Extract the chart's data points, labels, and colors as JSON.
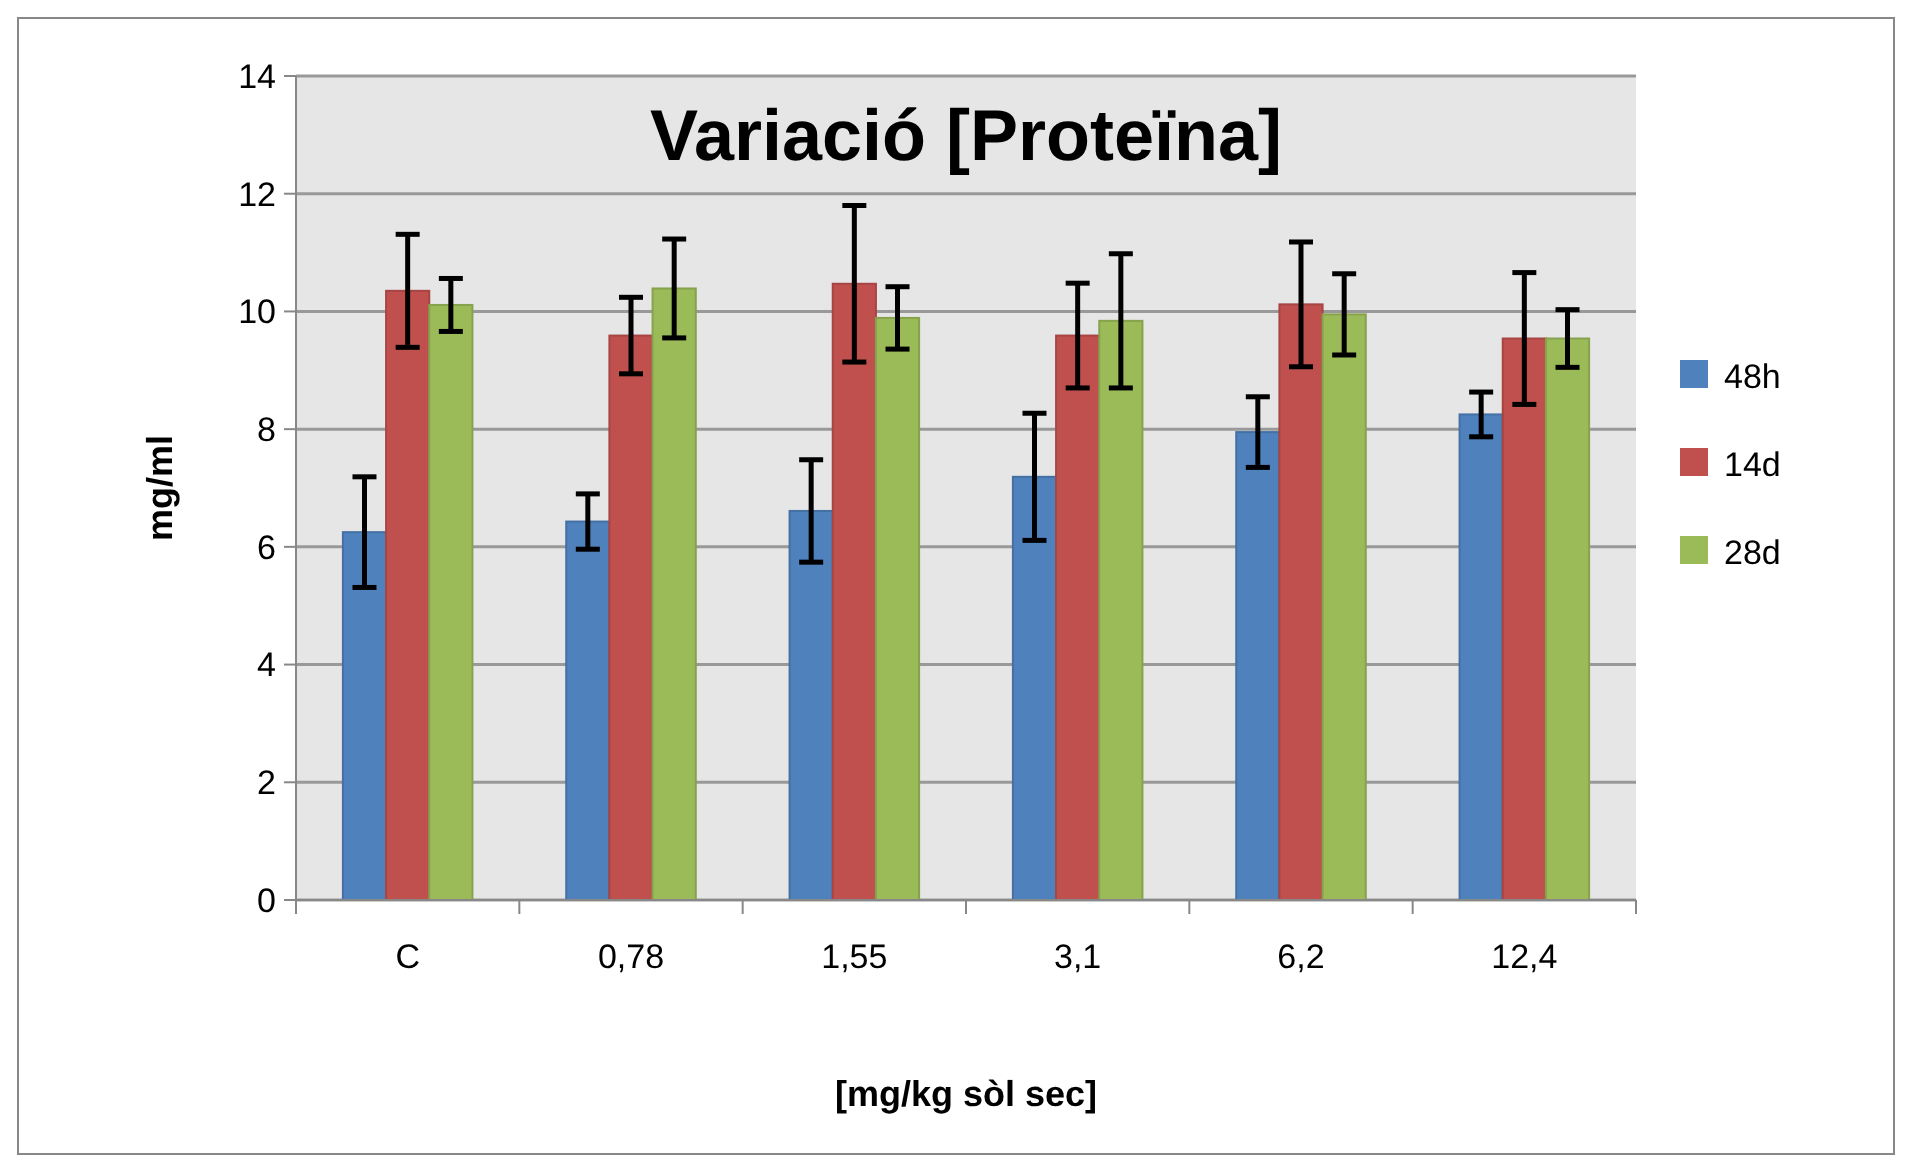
{
  "chart_data": {
    "type": "bar",
    "title": "Variació [Proteïna]",
    "xlabel": "[mg/kg sòl sec]",
    "ylabel": "mg/ml",
    "categories": [
      "C",
      "0,78",
      "1,55",
      "3,1",
      "6,2",
      "12,4"
    ],
    "series": [
      {
        "name": "48h",
        "color": "#4f81bd",
        "values": [
          6.25,
          6.43,
          6.61,
          7.19,
          7.95,
          8.25
        ],
        "errors": [
          0.94,
          0.47,
          0.87,
          1.08,
          0.6,
          0.38
        ]
      },
      {
        "name": "14d",
        "color": "#c0504d",
        "values": [
          10.35,
          9.59,
          10.47,
          9.59,
          10.12,
          9.54
        ],
        "errors": [
          0.96,
          0.65,
          1.33,
          0.89,
          1.06,
          1.12
        ]
      },
      {
        "name": "28d",
        "color": "#9bbb59",
        "values": [
          10.11,
          10.39,
          9.89,
          9.84,
          9.95,
          9.54
        ],
        "errors": [
          0.45,
          0.84,
          0.53,
          1.14,
          0.69,
          0.49
        ]
      }
    ],
    "ylim": [
      0,
      14
    ],
    "yticks": [
      0,
      2,
      4,
      6,
      8,
      10,
      12,
      14
    ],
    "grid": "y",
    "legend": "right"
  }
}
